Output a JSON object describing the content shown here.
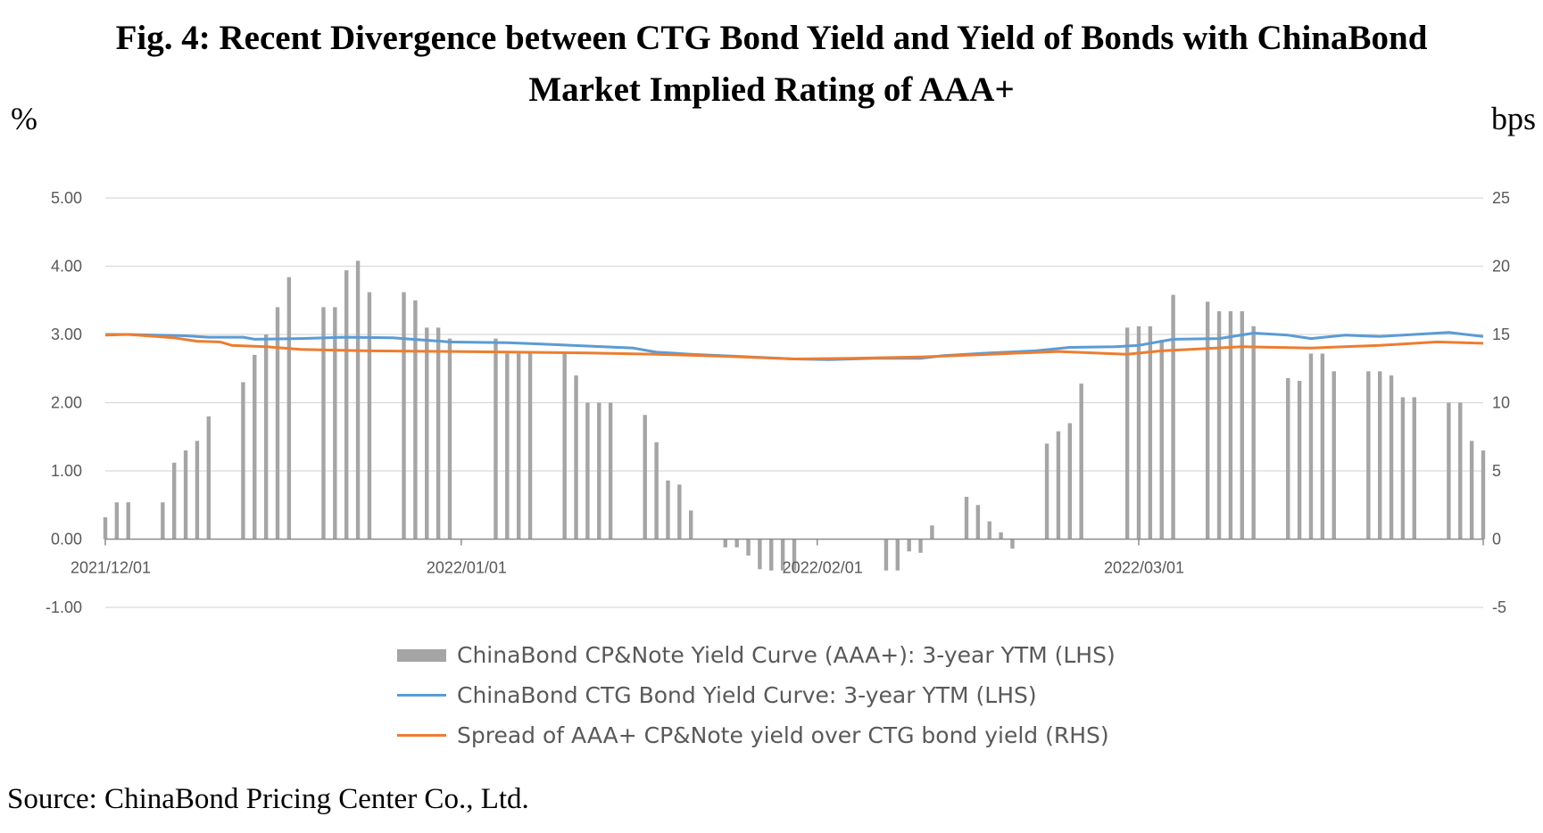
{
  "title_line1": "Fig. 4: Recent Divergence between CTG Bond Yield and Yield of Bonds with ChinaBond",
  "title_line2": "Market Implied Rating of AAA+",
  "unit_left": "%",
  "unit_right": "bps",
  "source": "Source: ChinaBond Pricing Center Co., Ltd.",
  "colors": {
    "bars": "#a5a5a5",
    "ctg_line": "#5b9bd5",
    "spread_line": "#ed7d31",
    "gridline": "#d9d9d9",
    "axis": "#8c8c8c",
    "tick_text": "#595959"
  },
  "chart_data": {
    "type": "bar+line",
    "x_start": "2021/12/01",
    "x_end": "2022/03/31",
    "x_tick_labels": [
      "2021/12/01",
      "2022/01/01",
      "2022/02/01",
      "2022/03/01"
    ],
    "y_left": {
      "range": [
        -1.0,
        5.0
      ],
      "ticks": [
        "-1.00",
        "0.00",
        "1.00",
        "2.00",
        "3.00",
        "4.00",
        "5.00"
      ],
      "unit": "%"
    },
    "y_right": {
      "range": [
        -5,
        25
      ],
      "ticks": [
        "-5",
        "0",
        "5",
        "10",
        "15",
        "20",
        "25"
      ],
      "unit": "bps"
    },
    "grid": true,
    "legend_position": "bottom",
    "series": [
      {
        "name": "ChinaBond CP&Note Yield Curve (AAA+): 3-year YTM (LHS)",
        "kind": "bar",
        "axis": "right",
        "values": [
          {
            "date": "2021/12/01",
            "v": 1.6
          },
          {
            "date": "2021/12/02",
            "v": 2.7
          },
          {
            "date": "2021/12/03",
            "v": 2.7
          },
          {
            "date": "2021/12/06",
            "v": 2.7
          },
          {
            "date": "2021/12/07",
            "v": 5.6
          },
          {
            "date": "2021/12/08",
            "v": 6.5
          },
          {
            "date": "2021/12/09",
            "v": 7.2
          },
          {
            "date": "2021/12/10",
            "v": 9.0
          },
          {
            "date": "2021/12/13",
            "v": 11.5
          },
          {
            "date": "2021/12/14",
            "v": 13.5
          },
          {
            "date": "2021/12/15",
            "v": 15.0
          },
          {
            "date": "2021/12/16",
            "v": 17.0
          },
          {
            "date": "2021/12/17",
            "v": 19.2
          },
          {
            "date": "2021/12/20",
            "v": 17.0
          },
          {
            "date": "2021/12/21",
            "v": 17.0
          },
          {
            "date": "2021/12/22",
            "v": 19.7
          },
          {
            "date": "2021/12/23",
            "v": 20.4
          },
          {
            "date": "2021/12/24",
            "v": 18.1
          },
          {
            "date": "2021/12/27",
            "v": 18.1
          },
          {
            "date": "2021/12/28",
            "v": 17.5
          },
          {
            "date": "2021/12/29",
            "v": 15.5
          },
          {
            "date": "2021/12/30",
            "v": 15.5
          },
          {
            "date": "2021/12/31",
            "v": 14.7
          },
          {
            "date": "2022/01/04",
            "v": 14.7
          },
          {
            "date": "2022/01/05",
            "v": 13.6
          },
          {
            "date": "2022/01/06",
            "v": 13.6
          },
          {
            "date": "2022/01/07",
            "v": 13.6
          },
          {
            "date": "2022/01/10",
            "v": 13.6
          },
          {
            "date": "2022/01/11",
            "v": 12.0
          },
          {
            "date": "2022/01/12",
            "v": 10.0
          },
          {
            "date": "2022/01/13",
            "v": 10.0
          },
          {
            "date": "2022/01/14",
            "v": 10.0
          },
          {
            "date": "2022/01/17",
            "v": 9.1
          },
          {
            "date": "2022/01/18",
            "v": 7.1
          },
          {
            "date": "2022/01/19",
            "v": 4.3
          },
          {
            "date": "2022/01/20",
            "v": 4.0
          },
          {
            "date": "2022/01/21",
            "v": 2.1
          },
          {
            "date": "2022/01/24",
            "v": -0.6
          },
          {
            "date": "2022/01/25",
            "v": -0.6
          },
          {
            "date": "2022/01/26",
            "v": -1.2
          },
          {
            "date": "2022/01/27",
            "v": -2.2
          },
          {
            "date": "2022/01/28",
            "v": -2.3
          },
          {
            "date": "2022/01/29",
            "v": -2.3
          },
          {
            "date": "2022/01/30",
            "v": -2.3
          },
          {
            "date": "2022/02/07",
            "v": -2.3
          },
          {
            "date": "2022/02/08",
            "v": -2.3
          },
          {
            "date": "2022/02/09",
            "v": -0.9
          },
          {
            "date": "2022/02/10",
            "v": -1.0
          },
          {
            "date": "2022/02/11",
            "v": 1.0
          },
          {
            "date": "2022/02/14",
            "v": 3.1
          },
          {
            "date": "2022/02/15",
            "v": 2.5
          },
          {
            "date": "2022/02/16",
            "v": 1.3
          },
          {
            "date": "2022/02/17",
            "v": 0.5
          },
          {
            "date": "2022/02/18",
            "v": -0.7
          },
          {
            "date": "2022/02/21",
            "v": 7.0
          },
          {
            "date": "2022/02/22",
            "v": 7.9
          },
          {
            "date": "2022/02/23",
            "v": 8.5
          },
          {
            "date": "2022/02/24",
            "v": 11.4
          },
          {
            "date": "2022/02/28",
            "v": 15.5
          },
          {
            "date": "2022/03/01",
            "v": 15.6
          },
          {
            "date": "2022/03/02",
            "v": 15.6
          },
          {
            "date": "2022/03/03",
            "v": 14.6
          },
          {
            "date": "2022/03/04",
            "v": 17.9
          },
          {
            "date": "2022/03/07",
            "v": 17.4
          },
          {
            "date": "2022/03/08",
            "v": 16.7
          },
          {
            "date": "2022/03/09",
            "v": 16.7
          },
          {
            "date": "2022/03/10",
            "v": 16.7
          },
          {
            "date": "2022/03/11",
            "v": 15.6
          },
          {
            "date": "2022/03/14",
            "v": 11.8
          },
          {
            "date": "2022/03/15",
            "v": 11.6
          },
          {
            "date": "2022/03/16",
            "v": 13.6
          },
          {
            "date": "2022/03/17",
            "v": 13.6
          },
          {
            "date": "2022/03/18",
            "v": 12.3
          },
          {
            "date": "2022/03/21",
            "v": 12.3
          },
          {
            "date": "2022/03/22",
            "v": 12.3
          },
          {
            "date": "2022/03/23",
            "v": 12.0
          },
          {
            "date": "2022/03/24",
            "v": 10.4
          },
          {
            "date": "2022/03/25",
            "v": 10.4
          },
          {
            "date": "2022/03/28",
            "v": 10.0
          },
          {
            "date": "2022/03/29",
            "v": 10.0
          },
          {
            "date": "2022/03/30",
            "v": 7.2
          },
          {
            "date": "2022/03/31",
            "v": 6.5
          }
        ]
      },
      {
        "name": "ChinaBond CTG Bond Yield Curve: 3-year YTM (LHS)",
        "kind": "line",
        "axis": "left",
        "values": [
          {
            "date": "2021/12/01",
            "v": 3.0
          },
          {
            "date": "2021/12/03",
            "v": 3.0
          },
          {
            "date": "2021/12/08",
            "v": 2.98
          },
          {
            "date": "2021/12/10",
            "v": 2.96
          },
          {
            "date": "2021/12/13",
            "v": 2.96
          },
          {
            "date": "2021/12/14",
            "v": 2.93
          },
          {
            "date": "2021/12/18",
            "v": 2.94
          },
          {
            "date": "2021/12/22",
            "v": 2.96
          },
          {
            "date": "2021/12/26",
            "v": 2.95
          },
          {
            "date": "2021/12/31",
            "v": 2.89
          },
          {
            "date": "2022/01/05",
            "v": 2.88
          },
          {
            "date": "2022/01/08",
            "v": 2.86
          },
          {
            "date": "2022/01/12",
            "v": 2.83
          },
          {
            "date": "2022/01/16",
            "v": 2.8
          },
          {
            "date": "2022/01/18",
            "v": 2.74
          },
          {
            "date": "2022/01/21",
            "v": 2.71
          },
          {
            "date": "2022/01/25",
            "v": 2.68
          },
          {
            "date": "2022/01/30",
            "v": 2.64
          },
          {
            "date": "2022/02/02",
            "v": 2.63
          },
          {
            "date": "2022/02/06",
            "v": 2.65
          },
          {
            "date": "2022/02/10",
            "v": 2.65
          },
          {
            "date": "2022/02/12",
            "v": 2.69
          },
          {
            "date": "2022/02/16",
            "v": 2.73
          },
          {
            "date": "2022/02/20",
            "v": 2.76
          },
          {
            "date": "2022/02/23",
            "v": 2.81
          },
          {
            "date": "2022/02/27",
            "v": 2.82
          },
          {
            "date": "2022/03/01",
            "v": 2.84
          },
          {
            "date": "2022/03/04",
            "v": 2.93
          },
          {
            "date": "2022/03/08",
            "v": 2.94
          },
          {
            "date": "2022/03/11",
            "v": 3.02
          },
          {
            "date": "2022/03/14",
            "v": 2.99
          },
          {
            "date": "2022/03/16",
            "v": 2.94
          },
          {
            "date": "2022/03/19",
            "v": 2.99
          },
          {
            "date": "2022/03/22",
            "v": 2.97
          },
          {
            "date": "2022/03/25",
            "v": 3.0
          },
          {
            "date": "2022/03/28",
            "v": 3.03
          },
          {
            "date": "2022/03/31",
            "v": 2.97
          }
        ]
      },
      {
        "name": "Spread of AAA+ CP&Note yield over CTG bond yield (RHS)",
        "kind": "line",
        "axis": "left",
        "values": [
          {
            "date": "2021/12/01",
            "v": 2.99
          },
          {
            "date": "2021/12/03",
            "v": 3.0
          },
          {
            "date": "2021/12/07",
            "v": 2.95
          },
          {
            "date": "2021/12/09",
            "v": 2.9
          },
          {
            "date": "2021/12/11",
            "v": 2.89
          },
          {
            "date": "2021/12/12",
            "v": 2.84
          },
          {
            "date": "2021/12/15",
            "v": 2.82
          },
          {
            "date": "2021/12/18",
            "v": 2.78
          },
          {
            "date": "2021/12/21",
            "v": 2.77
          },
          {
            "date": "2021/12/24",
            "v": 2.76
          },
          {
            "date": "2021/12/31",
            "v": 2.75
          },
          {
            "date": "2022/01/06",
            "v": 2.74
          },
          {
            "date": "2022/01/12",
            "v": 2.73
          },
          {
            "date": "2022/01/18",
            "v": 2.71
          },
          {
            "date": "2022/01/24",
            "v": 2.68
          },
          {
            "date": "2022/01/30",
            "v": 2.64
          },
          {
            "date": "2022/02/04",
            "v": 2.65
          },
          {
            "date": "2022/02/10",
            "v": 2.67
          },
          {
            "date": "2022/02/16",
            "v": 2.71
          },
          {
            "date": "2022/02/22",
            "v": 2.75
          },
          {
            "date": "2022/02/28",
            "v": 2.71
          },
          {
            "date": "2022/03/03",
            "v": 2.76
          },
          {
            "date": "2022/03/10",
            "v": 2.82
          },
          {
            "date": "2022/03/16",
            "v": 2.8
          },
          {
            "date": "2022/03/22",
            "v": 2.84
          },
          {
            "date": "2022/03/27",
            "v": 2.89
          },
          {
            "date": "2022/03/31",
            "v": 2.87
          }
        ]
      }
    ]
  }
}
